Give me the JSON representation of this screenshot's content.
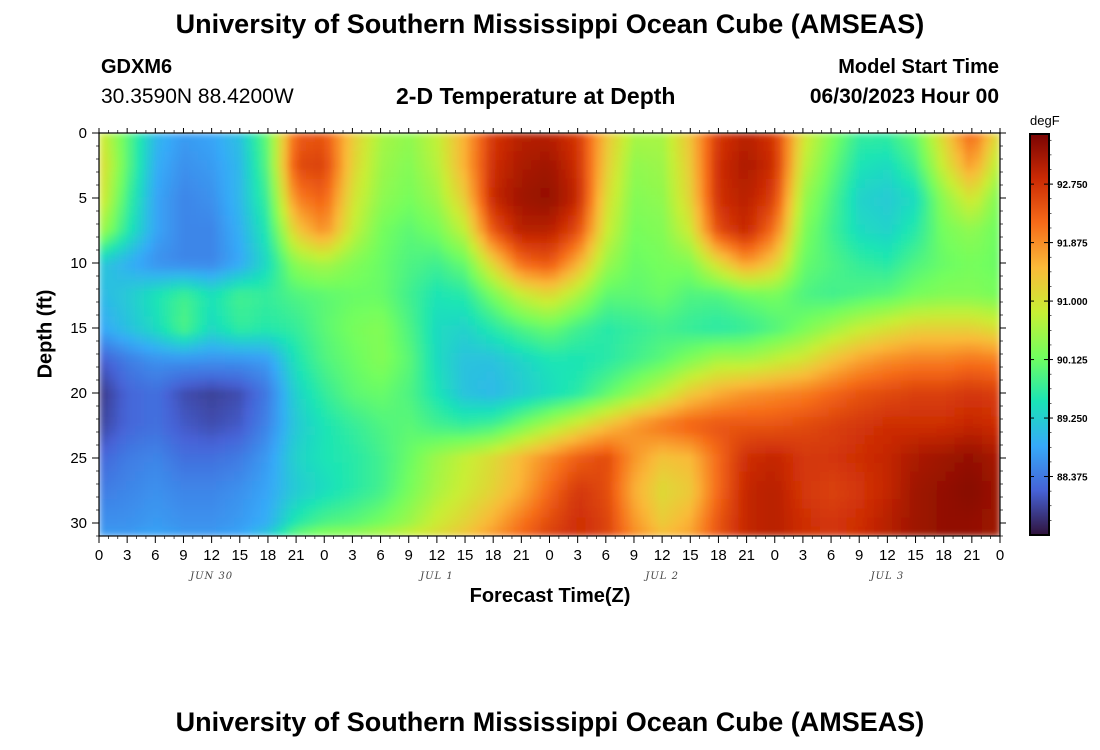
{
  "header": {
    "title": "University of Southern Mississippi Ocean Cube (AMSEAS)",
    "station_id": "GDXM6",
    "station_coords": "30.3590N  88.4200W",
    "plot_title": "2-D Temperature at Depth",
    "model_start_label": "Model Start Time",
    "model_start_value": "06/30/2023 Hour 00"
  },
  "footer": {
    "title": "University of Southern Mississippi Ocean Cube (AMSEAS)"
  },
  "chart_data": {
    "type": "heatmap",
    "title": "2-D Temperature at Depth",
    "xlabel": "Forecast Time(Z)",
    "ylabel": "Depth (ft)",
    "x_unit": "hour offset from 06/30/2023 00Z",
    "xlim": [
      0,
      96
    ],
    "ylim": [
      31,
      0
    ],
    "x_ticks": [
      0,
      3,
      6,
      9,
      12,
      15,
      18,
      21,
      24,
      27,
      30,
      33,
      36,
      39,
      42,
      45,
      48,
      51,
      54,
      57,
      60,
      63,
      66,
      69,
      72,
      75,
      78,
      81,
      84,
      87,
      90,
      93,
      96
    ],
    "x_tick_labels": [
      "0",
      "3",
      "6",
      "9",
      "12",
      "15",
      "18",
      "21",
      "0",
      "3",
      "6",
      "9",
      "12",
      "15",
      "18",
      "21",
      "0",
      "3",
      "6",
      "9",
      "12",
      "15",
      "18",
      "21",
      "0",
      "3",
      "6",
      "9",
      "12",
      "15",
      "18",
      "21",
      "0"
    ],
    "date_labels": [
      {
        "x": 12,
        "label": "JUN 30"
      },
      {
        "x": 36,
        "label": "JUL 1"
      },
      {
        "x": 60,
        "label": "JUL 2"
      },
      {
        "x": 84,
        "label": "JUL 3"
      }
    ],
    "y_ticks": [
      0,
      5,
      10,
      15,
      20,
      25,
      30
    ],
    "y_tick_labels": [
      "0",
      "5",
      "10",
      "15",
      "20",
      "25",
      "30"
    ],
    "colorbar": {
      "unit": "degF",
      "min": 87.5,
      "max": 93.5,
      "ticks": [
        88.375,
        89.25,
        90.125,
        91.0,
        91.875,
        92.75
      ],
      "tick_labels": [
        "88.375",
        "89.250",
        "90.125",
        "91.000",
        "91.875",
        "92.750"
      ],
      "colors": [
        "#30123b",
        "#4662d7",
        "#36aaf9",
        "#1ae4b6",
        "#72fe5e",
        "#c8ef34",
        "#faba39",
        "#f66b19",
        "#cb2a04",
        "#7a0403"
      ]
    },
    "depths": [
      0,
      2.5,
      5,
      7.5,
      10,
      12.5,
      15,
      17.5,
      20,
      22.5,
      25,
      27.5,
      30,
      31
    ],
    "hours": [
      0,
      3,
      6,
      9,
      12,
      15,
      18,
      21,
      24,
      27,
      30,
      33,
      36,
      39,
      42,
      45,
      48,
      51,
      54,
      57,
      60,
      63,
      66,
      69,
      72,
      75,
      78,
      81,
      84,
      87,
      90,
      93,
      96
    ],
    "values": [
      [
        91.0,
        90.0,
        89.0,
        88.7,
        88.8,
        89.1,
        90.1,
        92.3,
        92.4,
        91.3,
        90.6,
        90.4,
        90.8,
        91.6,
        92.7,
        93.0,
        93.0,
        92.7,
        91.4,
        90.6,
        90.6,
        91.4,
        92.7,
        93.0,
        92.7,
        91.0,
        90.3,
        89.7,
        89.7,
        90.1,
        91.2,
        92.3,
        91.0
      ],
      [
        91.2,
        90.0,
        88.9,
        88.6,
        88.7,
        89.0,
        90.0,
        92.5,
        92.6,
        91.2,
        90.5,
        90.3,
        90.7,
        91.6,
        92.8,
        93.1,
        93.2,
        92.8,
        91.3,
        90.4,
        90.5,
        91.3,
        92.8,
        93.1,
        92.8,
        90.8,
        90.1,
        89.5,
        89.4,
        89.8,
        90.9,
        91.8,
        90.6
      ],
      [
        91.1,
        89.8,
        88.8,
        88.5,
        88.6,
        89.0,
        89.8,
        92.0,
        92.3,
        91.0,
        90.4,
        90.2,
        90.5,
        91.3,
        92.9,
        93.2,
        93.3,
        92.9,
        91.1,
        90.3,
        90.4,
        91.2,
        92.8,
        93.0,
        92.6,
        90.5,
        89.9,
        89.3,
        89.2,
        89.4,
        90.4,
        91.0,
        90.2
      ],
      [
        90.6,
        89.6,
        88.8,
        88.5,
        88.5,
        88.9,
        89.6,
        91.3,
        91.9,
        90.8,
        90.2,
        90.0,
        90.2,
        90.8,
        92.4,
        93.0,
        93.0,
        92.5,
        90.9,
        90.2,
        90.3,
        90.9,
        92.5,
        92.9,
        92.1,
        90.3,
        89.8,
        89.4,
        89.3,
        89.6,
        90.2,
        90.4,
        90.1
      ],
      [
        89.2,
        88.9,
        88.6,
        88.5,
        88.5,
        88.8,
        89.4,
        90.4,
        90.6,
        90.3,
        90.1,
        89.9,
        89.8,
        90.1,
        91.2,
        92.2,
        92.4,
        91.6,
        90.5,
        90.1,
        90.2,
        90.3,
        91.1,
        91.8,
        91.3,
        90.1,
        89.9,
        89.7,
        89.6,
        89.9,
        90.1,
        90.2,
        90.1
      ],
      [
        89.0,
        89.2,
        89.5,
        89.8,
        89.5,
        89.8,
        89.7,
        89.9,
        90.0,
        90.1,
        90.1,
        89.8,
        89.5,
        89.6,
        90.2,
        90.8,
        91.1,
        90.6,
        90.0,
        90.0,
        90.1,
        89.9,
        89.9,
        90.1,
        90.2,
        89.9,
        89.8,
        89.9,
        90.0,
        90.2,
        90.3,
        90.3,
        90.2
      ],
      [
        88.8,
        89.1,
        89.4,
        89.9,
        89.4,
        89.7,
        89.6,
        89.7,
        90.0,
        90.2,
        90.3,
        89.9,
        89.4,
        89.3,
        89.6,
        89.9,
        90.1,
        89.8,
        89.6,
        89.7,
        89.8,
        89.7,
        89.6,
        89.7,
        89.9,
        90.2,
        90.5,
        90.8,
        91.0,
        91.2,
        91.2,
        91.2,
        91.0
      ],
      [
        88.1,
        88.4,
        88.6,
        88.6,
        88.6,
        88.6,
        88.7,
        89.5,
        89.9,
        90.1,
        90.3,
        90.0,
        89.4,
        89.1,
        89.1,
        89.3,
        89.5,
        89.5,
        89.6,
        89.8,
        90.0,
        90.3,
        90.6,
        90.6,
        90.8,
        91.0,
        91.4,
        91.7,
        91.9,
        92.0,
        92.0,
        92.1,
        92.0
      ],
      [
        87.8,
        88.2,
        88.3,
        88.0,
        87.9,
        88.0,
        88.4,
        89.3,
        89.7,
        90.0,
        90.1,
        89.9,
        89.5,
        89.1,
        89.0,
        89.2,
        89.4,
        89.6,
        90.0,
        90.4,
        90.8,
        91.3,
        91.6,
        91.8,
        91.9,
        92.0,
        92.2,
        92.4,
        92.5,
        92.6,
        92.6,
        92.7,
        92.6
      ],
      [
        87.9,
        88.2,
        88.3,
        88.1,
        88.0,
        88.1,
        88.5,
        89.2,
        89.5,
        89.7,
        89.9,
        90.0,
        89.8,
        89.7,
        89.8,
        90.2,
        90.6,
        91.0,
        91.4,
        91.8,
        92.1,
        92.3,
        92.4,
        92.4,
        92.4,
        92.5,
        92.6,
        92.7,
        92.8,
        92.8,
        92.8,
        92.9,
        92.8
      ],
      [
        88.2,
        88.4,
        88.5,
        88.3,
        88.3,
        88.4,
        88.7,
        89.3,
        89.5,
        89.6,
        89.8,
        90.1,
        90.5,
        90.8,
        91.1,
        91.5,
        91.9,
        92.3,
        92.5,
        91.8,
        91.4,
        91.5,
        92.2,
        92.8,
        92.9,
        92.7,
        92.7,
        92.8,
        92.9,
        93.1,
        93.2,
        93.3,
        93.1
      ],
      [
        88.4,
        88.5,
        88.6,
        88.5,
        88.5,
        88.6,
        88.8,
        89.2,
        89.4,
        89.6,
        89.8,
        90.2,
        90.6,
        90.9,
        91.2,
        91.6,
        92.2,
        92.7,
        92.5,
        91.6,
        91.1,
        91.3,
        92.2,
        92.9,
        93.0,
        92.7,
        92.6,
        92.7,
        92.9,
        93.2,
        93.3,
        93.4,
        93.2
      ],
      [
        88.6,
        88.6,
        88.7,
        88.6,
        88.6,
        88.7,
        88.9,
        89.6,
        89.9,
        90.0,
        90.2,
        90.5,
        90.9,
        91.2,
        91.6,
        92.1,
        92.5,
        92.8,
        92.6,
        91.8,
        91.3,
        91.6,
        92.4,
        92.9,
        93.0,
        92.8,
        92.7,
        92.8,
        93.0,
        93.2,
        93.3,
        93.3,
        93.2
      ],
      [
        88.7,
        88.7,
        88.8,
        88.7,
        88.7,
        88.8,
        89.2,
        90.1,
        90.4,
        90.5,
        90.7,
        90.9,
        91.1,
        91.4,
        91.8,
        92.2,
        92.6,
        92.8,
        92.6,
        91.9,
        91.5,
        91.7,
        92.4,
        92.9,
        93.0,
        92.8,
        92.7,
        92.8,
        93.0,
        93.2,
        93.3,
        93.3,
        93.2
      ]
    ]
  }
}
